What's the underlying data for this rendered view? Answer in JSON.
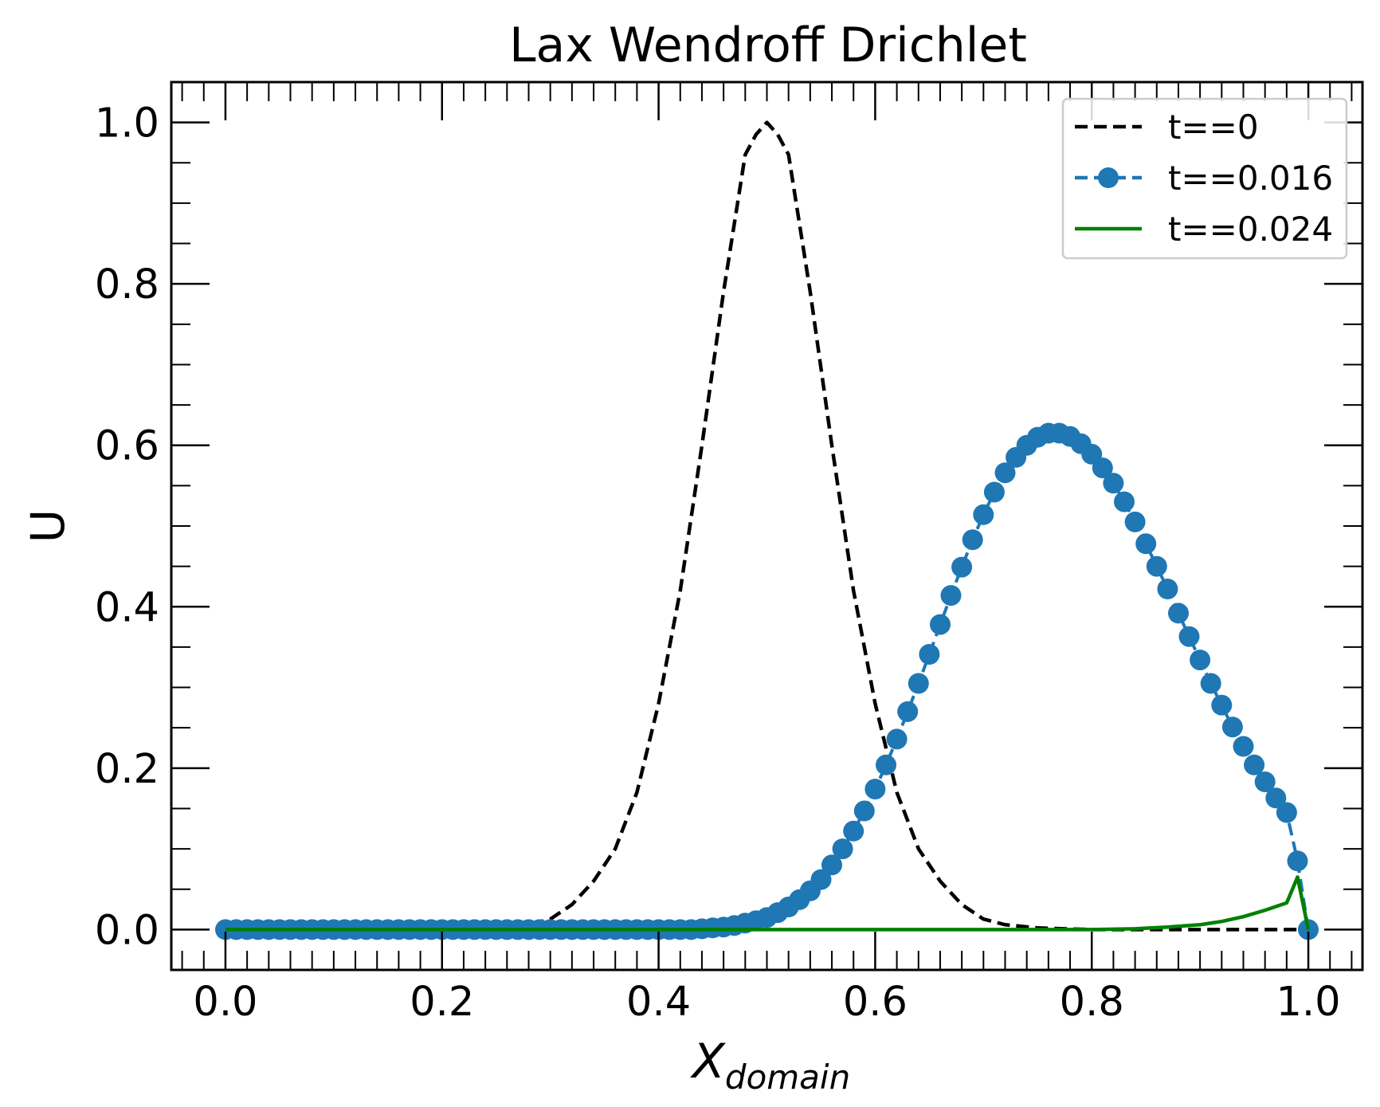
{
  "chart_data": {
    "type": "line",
    "title": "Lax Wendroff Drichlet",
    "xlabel_main": "X",
    "xlabel_sub": "domain",
    "ylabel": "U",
    "xlim": [
      -0.05,
      1.05
    ],
    "ylim": [
      -0.05,
      1.05
    ],
    "xticks": [
      0.0,
      0.2,
      0.4,
      0.6,
      0.8,
      1.0
    ],
    "xtick_labels": [
      "0.0",
      "0.2",
      "0.4",
      "0.6",
      "0.8",
      "1.0"
    ],
    "yticks": [
      0.0,
      0.2,
      0.4,
      0.6,
      0.8,
      1.0
    ],
    "ytick_labels": [
      "0.0",
      "0.2",
      "0.4",
      "0.6",
      "0.8",
      "1.0"
    ],
    "grid": false,
    "legend_position": "top-right",
    "series": [
      {
        "name": "t==0",
        "color": "#000000",
        "style": "dashed",
        "x": [
          0.0,
          0.2,
          0.25,
          0.28,
          0.3,
          0.32,
          0.34,
          0.36,
          0.38,
          0.4,
          0.42,
          0.44,
          0.46,
          0.48,
          0.49,
          0.5,
          0.51,
          0.52,
          0.54,
          0.56,
          0.58,
          0.6,
          0.62,
          0.64,
          0.66,
          0.68,
          0.7,
          0.72,
          0.75,
          0.8,
          0.85,
          0.9,
          0.95,
          1.0
        ],
        "y": [
          0.0,
          0.0,
          0.002,
          0.006,
          0.013,
          0.031,
          0.06,
          0.1,
          0.17,
          0.28,
          0.42,
          0.6,
          0.79,
          0.96,
          0.985,
          1.0,
          0.985,
          0.96,
          0.79,
          0.6,
          0.42,
          0.28,
          0.17,
          0.1,
          0.06,
          0.031,
          0.013,
          0.006,
          0.002,
          0.0,
          0.0,
          0.0,
          0.0,
          0.0
        ]
      },
      {
        "name": "t==0.016",
        "color": "#1f77b4",
        "style": "dashed-markers",
        "x": [
          0.0,
          0.01,
          0.02,
          0.03,
          0.04,
          0.05,
          0.06,
          0.07,
          0.08,
          0.09,
          0.1,
          0.11,
          0.12,
          0.13,
          0.14,
          0.15,
          0.16,
          0.17,
          0.18,
          0.19,
          0.2,
          0.21,
          0.22,
          0.23,
          0.24,
          0.25,
          0.26,
          0.27,
          0.28,
          0.29,
          0.3,
          0.31,
          0.32,
          0.33,
          0.34,
          0.35,
          0.36,
          0.37,
          0.38,
          0.39,
          0.4,
          0.41,
          0.42,
          0.43,
          0.44,
          0.45,
          0.46,
          0.47,
          0.48,
          0.49,
          0.5,
          0.51,
          0.52,
          0.53,
          0.54,
          0.55,
          0.56,
          0.57,
          0.58,
          0.59,
          0.6,
          0.61,
          0.62,
          0.63,
          0.64,
          0.65,
          0.66,
          0.67,
          0.68,
          0.69,
          0.7,
          0.71,
          0.72,
          0.73,
          0.74,
          0.75,
          0.76,
          0.77,
          0.78,
          0.79,
          0.8,
          0.81,
          0.82,
          0.83,
          0.84,
          0.85,
          0.86,
          0.87,
          0.88,
          0.89,
          0.9,
          0.91,
          0.92,
          0.93,
          0.94,
          0.95,
          0.96,
          0.97,
          0.98,
          0.99,
          1.0
        ],
        "y": [
          0.0,
          0.0,
          0.0,
          0.0,
          0.0,
          0.0,
          0.0,
          0.0,
          0.0,
          0.0,
          0.0,
          0.0,
          0.0,
          0.0,
          0.0,
          0.0,
          0.0,
          0.0,
          0.0,
          0.0,
          0.0,
          0.0,
          0.0,
          0.0,
          0.0,
          0.0,
          0.0,
          0.0,
          0.0,
          0.0,
          0.0,
          0.0,
          0.0,
          0.0,
          0.0,
          0.0,
          0.0,
          0.0,
          0.0,
          0.0,
          0.0,
          0.0,
          0.0,
          0.0,
          0.001,
          0.002,
          0.003,
          0.005,
          0.008,
          0.011,
          0.015,
          0.021,
          0.028,
          0.037,
          0.048,
          0.062,
          0.08,
          0.1,
          0.122,
          0.147,
          0.174,
          0.204,
          0.236,
          0.27,
          0.305,
          0.341,
          0.378,
          0.414,
          0.449,
          0.483,
          0.514,
          0.542,
          0.566,
          0.585,
          0.6,
          0.61,
          0.615,
          0.615,
          0.611,
          0.602,
          0.589,
          0.572,
          0.553,
          0.53,
          0.505,
          0.478,
          0.45,
          0.422,
          0.392,
          0.363,
          0.334,
          0.305,
          0.278,
          0.251,
          0.227,
          0.204,
          0.183,
          0.163,
          0.145,
          0.085,
          0.0
        ]
      },
      {
        "name": "t==0.024",
        "color": "#008000",
        "style": "solid",
        "x": [
          0.0,
          0.48,
          0.6,
          0.7,
          0.75,
          0.8,
          0.84,
          0.87,
          0.9,
          0.92,
          0.94,
          0.96,
          0.98,
          0.99,
          1.0
        ],
        "y": [
          0.0,
          0.0,
          0.0,
          0.0,
          0.0,
          0.0,
          0.001,
          0.003,
          0.006,
          0.01,
          0.016,
          0.024,
          0.033,
          0.065,
          0.0
        ]
      }
    ]
  }
}
